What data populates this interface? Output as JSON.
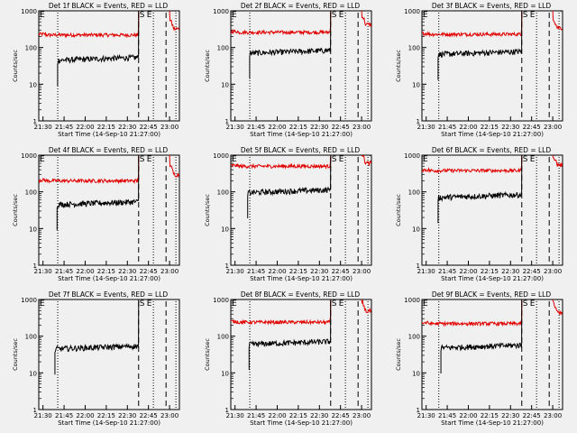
{
  "x_axis": {
    "label": "Start Time (14-Sep-10 21:27:00)",
    "tick_labels_full": [
      "21:30",
      "21:45",
      "22:00",
      "22:15",
      "22:30",
      "22:45",
      "23:00"
    ]
  },
  "y_axis": {
    "label": "Counts/sec",
    "tick_labels": [
      "1",
      "10",
      "100",
      "1000"
    ]
  },
  "flags": {
    "left": "E",
    "middle": "S",
    "right": "E"
  },
  "colors": {
    "events": "#000000",
    "lld": "#e00000",
    "background": "#f0f0f0"
  },
  "chart_data": [
    {
      "type": "line",
      "title": "Det 1f BLACK = Events, RED = LLD",
      "lld_level": 220,
      "events_level": 45,
      "events_start_minute": 13.4,
      "post_peak": 320,
      "x_range_minutes": [
        0,
        100
      ],
      "ylim": [
        1,
        1000
      ],
      "log_y": true
    },
    {
      "type": "line",
      "title": "Det 2f BLACK = Events, RED = LLD",
      "lld_level": 260,
      "events_level": 70,
      "events_start_minute": 13.4,
      "post_peak": 420,
      "x_range_minutes": [
        0,
        100
      ],
      "ylim": [
        1,
        1000
      ],
      "log_y": true
    },
    {
      "type": "line",
      "title": "Det 3f BLACK = Events, RED = LLD",
      "lld_level": 230,
      "events_level": 65,
      "events_start_minute": 11.5,
      "post_peak": 350,
      "x_range_minutes": [
        0,
        100
      ],
      "ylim": [
        1,
        1000
      ],
      "log_y": true
    },
    {
      "type": "line",
      "title": "Det 4f BLACK = Events, RED = LLD",
      "lld_level": 200,
      "events_level": 45,
      "events_start_minute": 13.0,
      "post_peak": 300,
      "x_range_minutes": [
        0,
        100
      ],
      "ylim": [
        1,
        1000
      ],
      "log_y": true
    },
    {
      "type": "line",
      "title": "Det 5f BLACK = Events, RED = LLD",
      "lld_level": 500,
      "events_level": 95,
      "events_start_minute": 12.0,
      "post_peak": 600,
      "x_range_minutes": [
        0,
        100
      ],
      "ylim": [
        1,
        1000
      ],
      "log_y": true
    },
    {
      "type": "line",
      "title": "Det 6f BLACK = Events, RED = LLD",
      "lld_level": 380,
      "events_level": 70,
      "events_start_minute": 11.5,
      "post_peak": 550,
      "x_range_minutes": [
        0,
        100
      ],
      "ylim": [
        1,
        1000
      ],
      "log_y": true
    },
    {
      "type": "line",
      "title": "Det 7f BLACK = Events, RED = LLD",
      "lld_level": null,
      "events_level": 45,
      "events_start_minute": 11.5,
      "post_peak": null,
      "x_range_minutes": [
        0,
        100
      ],
      "ylim": [
        1,
        1000
      ],
      "log_y": true
    },
    {
      "type": "line",
      "title": "Det 8f BLACK = Events, RED = LLD",
      "lld_level": 240,
      "events_level": 60,
      "events_start_minute": 13.0,
      "post_peak": 480,
      "x_range_minutes": [
        0,
        100
      ],
      "ylim": [
        1,
        1000
      ],
      "log_y": true
    },
    {
      "type": "line",
      "title": "Det 9f BLACK = Events, RED = LLD",
      "lld_level": 220,
      "events_level": 48,
      "events_start_minute": 13.5,
      "post_peak": 450,
      "x_range_minutes": [
        0,
        100
      ],
      "ylim": [
        1,
        1000
      ],
      "log_y": true
    }
  ]
}
